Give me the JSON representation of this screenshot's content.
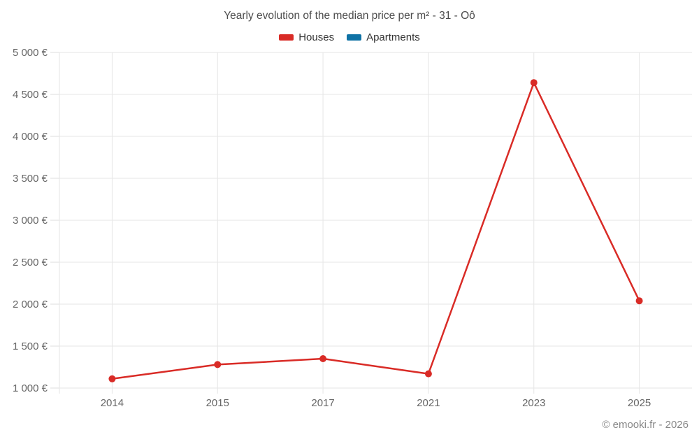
{
  "title": "Yearly evolution of the median price per m² - 31 - Oô",
  "footer": "© emooki.fr - 2026",
  "colors": {
    "houses": "#d92b26",
    "apartments": "#0f72a5",
    "grid": "#e6e6e6",
    "tick": "#dcdcdc",
    "axis_label": "#666666",
    "title_text": "#4c4c4c",
    "legend_text": "#333333",
    "footer_text": "#878787"
  },
  "chart_data": {
    "type": "line",
    "title": "Yearly evolution of the median price per m² - 31 - Oô",
    "categories": [
      "2014",
      "2015",
      "2017",
      "2021",
      "2023",
      "2025"
    ],
    "series": [
      {
        "name": "Houses",
        "color": "#d92b26",
        "values": [
          1110,
          1280,
          1350,
          1170,
          4640,
          2040
        ]
      },
      {
        "name": "Apartments",
        "color": "#0f72a5",
        "values": []
      }
    ],
    "xlabel": "",
    "ylabel": "",
    "ylim": [
      1000,
      5000
    ],
    "ytick_step": 500,
    "ytick_labels": [
      "1 000 €",
      "1 500 €",
      "2 000 €",
      "2 500 €",
      "3 000 €",
      "3 500 €",
      "4 000 €",
      "4 500 €",
      "5 000 €"
    ],
    "grid": true,
    "legend_position": "top",
    "marker": "circle"
  }
}
